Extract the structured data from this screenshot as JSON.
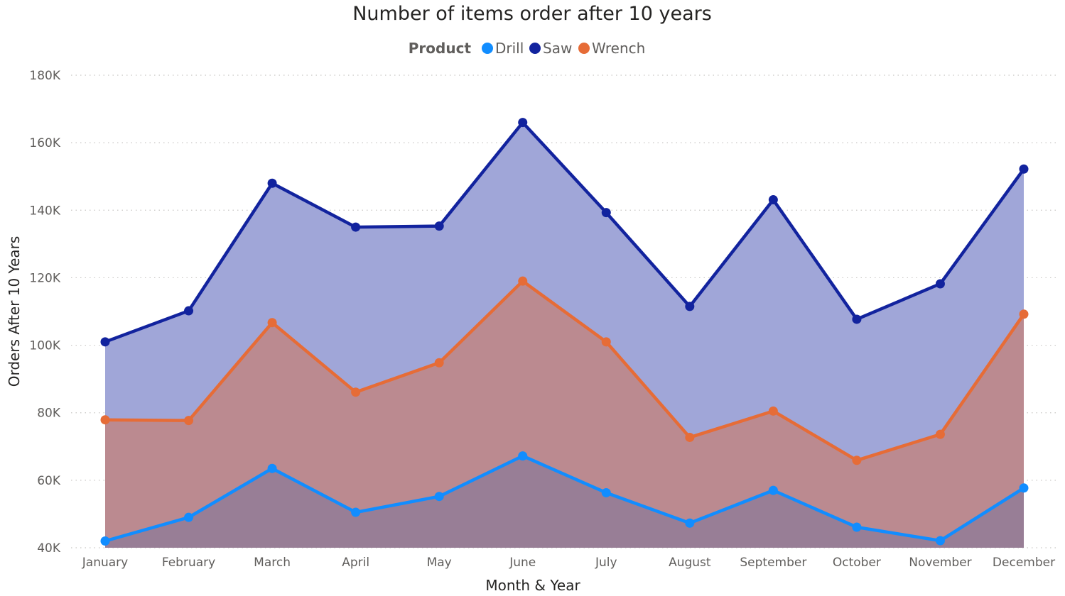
{
  "chart_data": {
    "type": "area",
    "title": "Number of items order after 10 years",
    "xlabel": "Month & Year",
    "ylabel": "Orders After 10 Years",
    "legend_title": "Product",
    "legend_position": "top-center",
    "grid": true,
    "ylim": [
      40000,
      180000
    ],
    "yticks": [
      40000,
      60000,
      80000,
      100000,
      120000,
      140000,
      160000,
      180000
    ],
    "ytick_labels": [
      "40K",
      "60K",
      "80K",
      "100K",
      "120K",
      "140K",
      "160K",
      "180K"
    ],
    "categories": [
      "January",
      "February",
      "March",
      "April",
      "May",
      "June",
      "July",
      "August",
      "September",
      "October",
      "November",
      "December"
    ],
    "series": [
      {
        "name": "Drill",
        "color": "#118DFF",
        "values": [
          42000,
          49000,
          63500,
          50500,
          55200,
          67200,
          56300,
          47300,
          57000,
          46100,
          42100,
          57700
        ]
      },
      {
        "name": "Saw",
        "color": "#12239E",
        "values": [
          101000,
          110200,
          148000,
          135000,
          135300,
          166000,
          139300,
          111500,
          143100,
          107700,
          118200,
          152200
        ]
      },
      {
        "name": "Wrench",
        "color": "#E66C37",
        "values": [
          77900,
          77700,
          106700,
          86100,
          94800,
          119000,
          101000,
          72700,
          80500,
          65900,
          73600,
          109200
        ]
      }
    ]
  }
}
